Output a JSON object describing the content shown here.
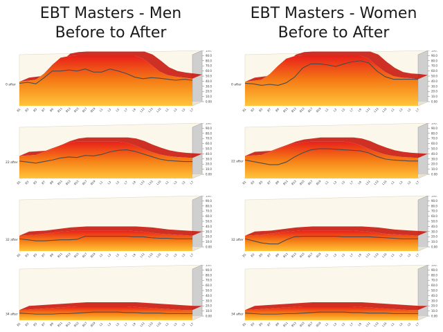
{
  "titles": {
    "men": {
      "line1": "EBT Masters - Men",
      "line2": "Before to After"
    },
    "women": {
      "line1": "EBT Masters - Women",
      "line2": "Before to After"
    }
  },
  "colors": {
    "top": "#e8201a",
    "mid": "#f57d16",
    "bottom": "#ffc53a",
    "line": "#4a4a4a",
    "bg": "#fbf7ea",
    "wall": "#cfcfcf"
  },
  "axis": {
    "x_ticks": [
      "B1",
      "B3",
      "B5",
      "B7",
      "B9",
      "B11",
      "B13",
      "B15",
      "B17",
      "B19",
      "L1",
      "L3",
      "L5",
      "L7",
      "L9",
      "L11",
      "L13",
      "L15",
      "L1",
      "L3",
      "L5",
      "L7"
    ],
    "y_ticks": [
      "100.00",
      "90.00",
      "80.00",
      "70.00",
      "60.00",
      "50.00",
      "40.00",
      "30.00",
      "20.00",
      "10.00",
      "0.00"
    ]
  },
  "chart_data": [
    {
      "type": "area",
      "group": "men",
      "row": 1,
      "series_label": "0 after",
      "ylim": [
        0,
        100
      ],
      "before": [
        47,
        49,
        51,
        63,
        80,
        94,
        97,
        98,
        98,
        98,
        98,
        98,
        98,
        98,
        98,
        92,
        80,
        67,
        60,
        57,
        55,
        53
      ],
      "after": [
        44,
        46,
        43,
        55,
        68,
        68,
        70,
        68,
        72,
        66,
        66,
        72,
        68,
        63,
        56,
        53,
        55,
        54,
        52,
        50,
        52,
        50
      ]
    },
    {
      "type": "area",
      "group": "men",
      "row": 2,
      "series_label": "22 after",
      "ylim": [
        0,
        100
      ],
      "before": [
        44,
        45,
        46,
        52,
        58,
        65,
        70,
        72,
        72,
        72,
        72,
        72,
        72,
        70,
        65,
        58,
        52,
        47,
        44,
        42,
        41,
        40
      ],
      "after": [
        34,
        32,
        30,
        33,
        36,
        40,
        42,
        41,
        45,
        44,
        47,
        52,
        55,
        56,
        53,
        48,
        43,
        38,
        35,
        34,
        33,
        33
      ]
    },
    {
      "type": "area",
      "group": "men",
      "row": 3,
      "series_label": "32 after",
      "ylim": [
        0,
        100
      ],
      "before": [
        30,
        31,
        32,
        34,
        36,
        38,
        39,
        40,
        40,
        40,
        40,
        40,
        40,
        40,
        39,
        38,
        36,
        34,
        33,
        32,
        31,
        30
      ],
      "after": [
        24,
        22,
        20,
        20,
        21,
        22,
        22,
        23,
        29,
        29,
        29,
        29,
        29,
        29,
        28,
        28,
        26,
        25,
        25,
        24,
        24,
        24
      ]
    },
    {
      "type": "area",
      "group": "men",
      "row": 4,
      "series_label": "34 after",
      "ylim": [
        0,
        100
      ],
      "before": [
        20,
        21,
        22,
        23,
        24,
        25,
        26,
        27,
        27,
        27,
        27,
        27,
        27,
        27,
        26,
        25,
        24,
        23,
        22,
        21,
        20,
        20
      ],
      "after": [
        14,
        13,
        12,
        12,
        12,
        13,
        13,
        14,
        15,
        16,
        16,
        16,
        16,
        15,
        15,
        14,
        14,
        14,
        13,
        13,
        13,
        13
      ]
    },
    {
      "type": "area",
      "group": "women",
      "row": 1,
      "series_label": "0 after",
      "ylim": [
        0,
        100
      ],
      "before": [
        47,
        49,
        51,
        62,
        78,
        92,
        97,
        98,
        98,
        98,
        98,
        98,
        98,
        98,
        98,
        92,
        78,
        66,
        58,
        55,
        54,
        52
      ],
      "after": [
        44,
        43,
        40,
        42,
        40,
        45,
        56,
        74,
        82,
        82,
        80,
        77,
        82,
        86,
        88,
        84,
        68,
        57,
        52,
        52,
        52,
        52
      ]
    },
    {
      "type": "area",
      "group": "women",
      "row": 2,
      "series_label": "22 after",
      "ylim": [
        0,
        100
      ],
      "before": [
        44,
        45,
        46,
        52,
        58,
        64,
        68,
        70,
        72,
        72,
        72,
        72,
        72,
        70,
        65,
        58,
        52,
        47,
        44,
        42,
        41,
        40
      ],
      "after": [
        36,
        33,
        30,
        27,
        27,
        32,
        42,
        50,
        56,
        58,
        58,
        57,
        56,
        55,
        54,
        50,
        43,
        38,
        36,
        35,
        34,
        34
      ]
    },
    {
      "type": "area",
      "group": "women",
      "row": 3,
      "series_label": "32 after",
      "ylim": [
        0,
        100
      ],
      "before": [
        30,
        31,
        32,
        34,
        36,
        38,
        39,
        40,
        40,
        40,
        40,
        40,
        40,
        40,
        39,
        38,
        36,
        34,
        33,
        32,
        31,
        30
      ],
      "after": [
        24,
        20,
        16,
        14,
        14,
        22,
        28,
        29,
        29,
        29,
        29,
        29,
        28,
        28,
        28,
        28,
        27,
        26,
        25,
        24,
        24,
        24
      ]
    },
    {
      "type": "area",
      "group": "women",
      "row": 4,
      "series_label": "34 after",
      "ylim": [
        0,
        100
      ],
      "before": [
        20,
        21,
        22,
        23,
        24,
        25,
        26,
        27,
        27,
        27,
        27,
        27,
        27,
        27,
        26,
        25,
        24,
        23,
        22,
        21,
        20,
        20
      ],
      "after": [
        14,
        13,
        12,
        12,
        12,
        13,
        13,
        14,
        15,
        16,
        16,
        16,
        16,
        15,
        15,
        14,
        14,
        14,
        13,
        13,
        13,
        13
      ]
    }
  ]
}
